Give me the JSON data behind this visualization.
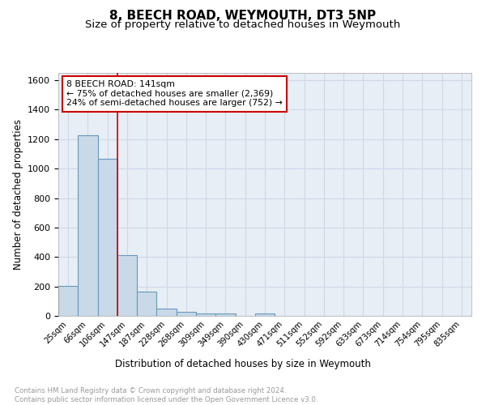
{
  "title": "8, BEECH ROAD, WEYMOUTH, DT3 5NP",
  "subtitle": "Size of property relative to detached houses in Weymouth",
  "xlabel": "Distribution of detached houses by size in Weymouth",
  "ylabel": "Number of detached properties",
  "bin_labels": [
    "25sqm",
    "66sqm",
    "106sqm",
    "147sqm",
    "187sqm",
    "228sqm",
    "268sqm",
    "309sqm",
    "349sqm",
    "390sqm",
    "430sqm",
    "471sqm",
    "511sqm",
    "552sqm",
    "592sqm",
    "633sqm",
    "673sqm",
    "714sqm",
    "754sqm",
    "795sqm",
    "835sqm"
  ],
  "bar_values": [
    205,
    1225,
    1065,
    410,
    163,
    48,
    27,
    17,
    14,
    0,
    14,
    0,
    0,
    0,
    0,
    0,
    0,
    0,
    0,
    0,
    0
  ],
  "bar_color": "#c9d9e8",
  "bar_edge_color": "#6699bb",
  "vline_color": "#cc0000",
  "annotation_box_text": "8 BEECH ROAD: 141sqm\n← 75% of detached houses are smaller (2,369)\n24% of semi-detached houses are larger (752) →",
  "annotation_box_color": "#ffffff",
  "annotation_box_edge_color": "#cc0000",
  "ylim": [
    0,
    1650
  ],
  "yticks": [
    0,
    200,
    400,
    600,
    800,
    1000,
    1200,
    1400,
    1600
  ],
  "grid_color": "#d0d8e8",
  "bg_color": "#e8eef5",
  "footnote": "Contains HM Land Registry data © Crown copyright and database right 2024.\nContains public sector information licensed under the Open Government Licence v3.0.",
  "title_fontsize": 11,
  "subtitle_fontsize": 9.5,
  "xlabel_fontsize": 8.5,
  "ylabel_fontsize": 8.5,
  "footnote_fontsize": 6.2
}
